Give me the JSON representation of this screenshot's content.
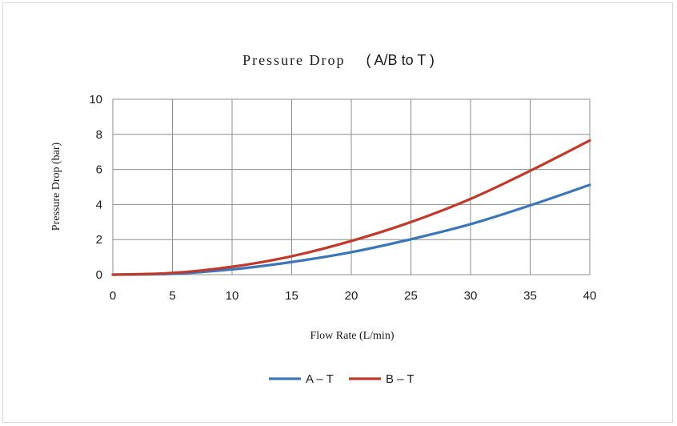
{
  "chart_data": {
    "type": "line",
    "title_main": "Pressure Drop",
    "title_paren": "( A/B to T )",
    "xlabel": "Flow Rate (L/min)",
    "ylabel": "Pressure Drop (bar)",
    "xlim": [
      0,
      40
    ],
    "ylim": [
      0,
      10
    ],
    "x_ticks": [
      0,
      5,
      10,
      15,
      20,
      25,
      30,
      35,
      40
    ],
    "y_ticks": [
      0,
      2,
      4,
      6,
      8,
      10
    ],
    "grid": true,
    "legend_position": "bottom",
    "x": [
      0,
      5,
      10,
      15,
      20,
      25,
      30,
      35,
      40
    ],
    "series": [
      {
        "name": "A – T",
        "color": "#3a76b8",
        "values": [
          0,
          0.05,
          0.3,
          0.72,
          1.28,
          2.02,
          2.88,
          3.95,
          5.12
        ]
      },
      {
        "name": "B – T",
        "color": "#c0392b",
        "values": [
          0,
          0.1,
          0.45,
          1.05,
          1.92,
          3.0,
          4.32,
          5.92,
          7.65
        ]
      }
    ]
  }
}
